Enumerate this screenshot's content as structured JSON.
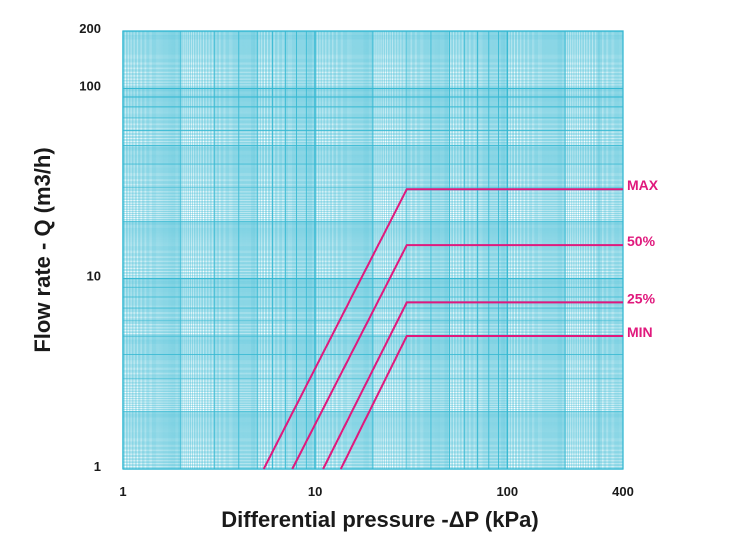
{
  "chart_data": {
    "type": "line",
    "xscale": "log",
    "yscale": "log",
    "xlabel": "Differential pressure -ΔP (kPa)",
    "ylabel": "Flow rate - Q (m3/h)",
    "xlim": [
      1,
      400
    ],
    "ylim": [
      1,
      200
    ],
    "xticks": [
      "1",
      "10",
      "100",
      "400"
    ],
    "yticks": [
      "1",
      "10",
      "100",
      "200"
    ],
    "xtick_values": [
      1,
      10,
      100,
      400
    ],
    "ytick_values": [
      1,
      10,
      100,
      200
    ],
    "grid": true,
    "grid_color": "#35b8d2",
    "series_color": "#e0197d",
    "series": [
      {
        "name": "MAX",
        "x": [
          5.4,
          30,
          400
        ],
        "y": [
          1,
          29.5,
          29.5
        ]
      },
      {
        "name": "50%",
        "x": [
          7.6,
          30,
          400
        ],
        "y": [
          1,
          15,
          15
        ]
      },
      {
        "name": "25%",
        "x": [
          11,
          30,
          400
        ],
        "y": [
          1,
          7.5,
          7.5
        ]
      },
      {
        "name": "MIN",
        "x": [
          13.6,
          30,
          400
        ],
        "y": [
          1,
          5,
          5
        ]
      }
    ]
  }
}
